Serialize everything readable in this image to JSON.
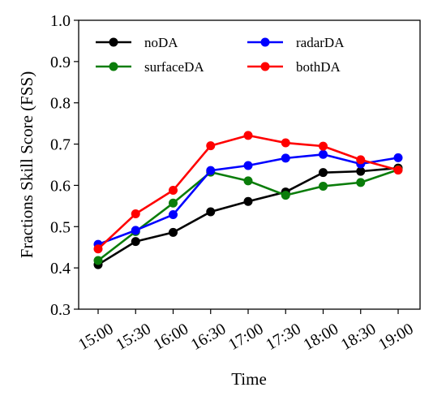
{
  "chart_data": {
    "type": "line",
    "xlabel": "Time",
    "ylabel": "Fractions Skill Score (FSS)",
    "categories": [
      "15:00",
      "15:30",
      "16:00",
      "16:30",
      "17:00",
      "17:30",
      "18:00",
      "18:30",
      "19:00"
    ],
    "ylim": [
      0.3,
      1.0
    ],
    "yticks": [
      "0.3",
      "0.4",
      "0.5",
      "0.6",
      "0.7",
      "0.8",
      "0.9",
      "1.0"
    ],
    "grid": false,
    "legend_position": "top",
    "series": [
      {
        "name": "noDA",
        "color": "#000000",
        "values": [
          0.408,
          0.464,
          0.486,
          0.536,
          0.561,
          0.584,
          0.631,
          0.634,
          0.642
        ]
      },
      {
        "name": "surfaceDA",
        "color": "#0a7d0a",
        "values": [
          0.418,
          0.488,
          0.557,
          0.632,
          0.611,
          0.576,
          0.598,
          0.607,
          0.638
        ]
      },
      {
        "name": "radarDA",
        "color": "#0000ff",
        "values": [
          0.457,
          0.491,
          0.529,
          0.636,
          0.648,
          0.666,
          0.675,
          0.652,
          0.667
        ]
      },
      {
        "name": "bothDA",
        "color": "#ff0000",
        "values": [
          0.446,
          0.531,
          0.588,
          0.696,
          0.721,
          0.703,
          0.695,
          0.662,
          0.637
        ]
      }
    ]
  }
}
